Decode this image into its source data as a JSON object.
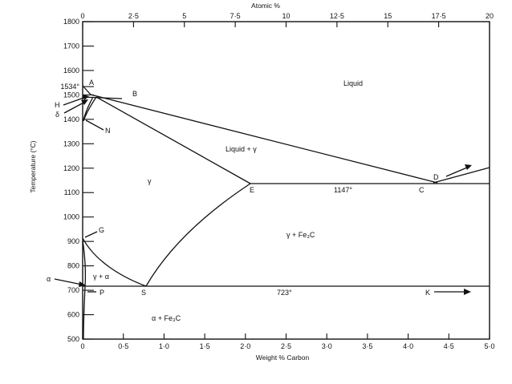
{
  "diagram": {
    "top_axis_title": "Atomic %",
    "left_axis_title": "Temperature (°C)",
    "bottom_axis_title": "Weight % Carbon",
    "top_ticks": [
      "0",
      "2·5",
      "5",
      "7·5",
      "10",
      "12·5",
      "15",
      "17·5",
      "20"
    ],
    "bottom_ticks": [
      "0",
      "0·5",
      "1·0",
      "1·5",
      "2·0",
      "2·5",
      "3·0",
      "3·5",
      "4·0",
      "4·5",
      "5·0"
    ],
    "left_ticks": [
      "1800",
      "1700",
      "1600",
      "1534°",
      "1500",
      "1400",
      "1300",
      "1200",
      "1100",
      "1000",
      "900",
      "800",
      "700",
      "600",
      "500"
    ],
    "point_labels": {
      "A": "A",
      "B": "B",
      "H": "H",
      "delta": "δ",
      "N": "N",
      "E": "E",
      "C": "C",
      "D": "D",
      "G": "G",
      "alpha": "α",
      "P": "P",
      "S": "S",
      "K": "K"
    },
    "region_labels": {
      "liquid": "Liquid",
      "liquid_gamma": "Liquid + γ",
      "gamma": "γ",
      "gamma_fe3c": "γ + Fe₃C",
      "gamma_alpha": "γ + α",
      "alpha_fe3c": "α + Fe₃C"
    },
    "isotherm_labels": {
      "eutectic": "1147°",
      "eutectoid": "723°"
    }
  }
}
